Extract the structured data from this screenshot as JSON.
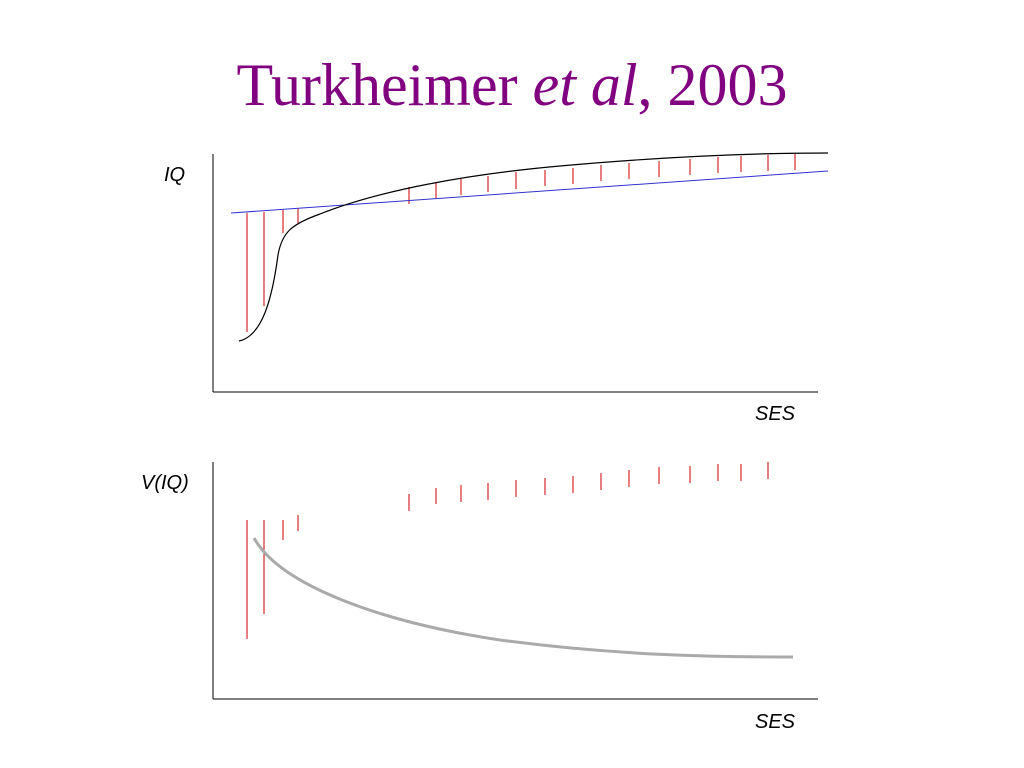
{
  "title": {
    "author": "Turkheimer",
    "etal": "et al",
    "comma": ",",
    "year": "2003"
  },
  "colors": {
    "title": "#800080",
    "fitted_line": "#3333cc",
    "residuals": "#cc0000",
    "variance_curve": "#aaaaaa",
    "axis": "#000000"
  },
  "top_panel": {
    "ylabel": "IQ",
    "xlabel": "SES"
  },
  "bottom_panel": {
    "ylabel": "V(IQ)",
    "xlabel": "SES"
  }
}
